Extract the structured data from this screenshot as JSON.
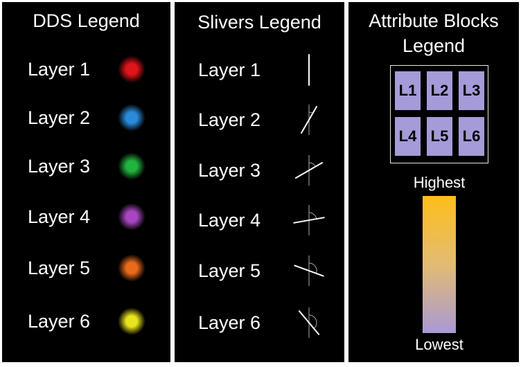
{
  "dds": {
    "title": "DDS Legend",
    "layers": [
      {
        "label": "Layer 1",
        "color": "#e0141a"
      },
      {
        "label": "Layer 2",
        "color": "#2a8bdc"
      },
      {
        "label": "Layer 3",
        "color": "#22b23e"
      },
      {
        "label": "Layer 4",
        "color": "#a846c0"
      },
      {
        "label": "Layer 5",
        "color": "#e86a1c"
      },
      {
        "label": "Layer 6",
        "color": "#e8e41e"
      }
    ]
  },
  "slivers": {
    "title": "Slivers Legend",
    "layers": [
      {
        "label": "Layer 1",
        "angle_deg": 0
      },
      {
        "label": "Layer 2",
        "angle_deg": 30
      },
      {
        "label": "Layer 3",
        "angle_deg": 60
      },
      {
        "label": "Layer 4",
        "angle_deg": 80
      },
      {
        "label": "Layer 5",
        "angle_deg": 110
      },
      {
        "label": "Layer 6",
        "angle_deg": 140
      }
    ]
  },
  "attribute_blocks": {
    "title_line1": "Attribute Blocks",
    "title_line2": "Legend",
    "blocks": [
      "L1",
      "L2",
      "L3",
      "L4",
      "L5",
      "L6"
    ],
    "block_color": "#a59bd8",
    "scale_high_label": "Highest",
    "scale_low_label": "Lowest",
    "scale_high_color": "#fdbf1a",
    "scale_low_color": "#a89ad6"
  }
}
